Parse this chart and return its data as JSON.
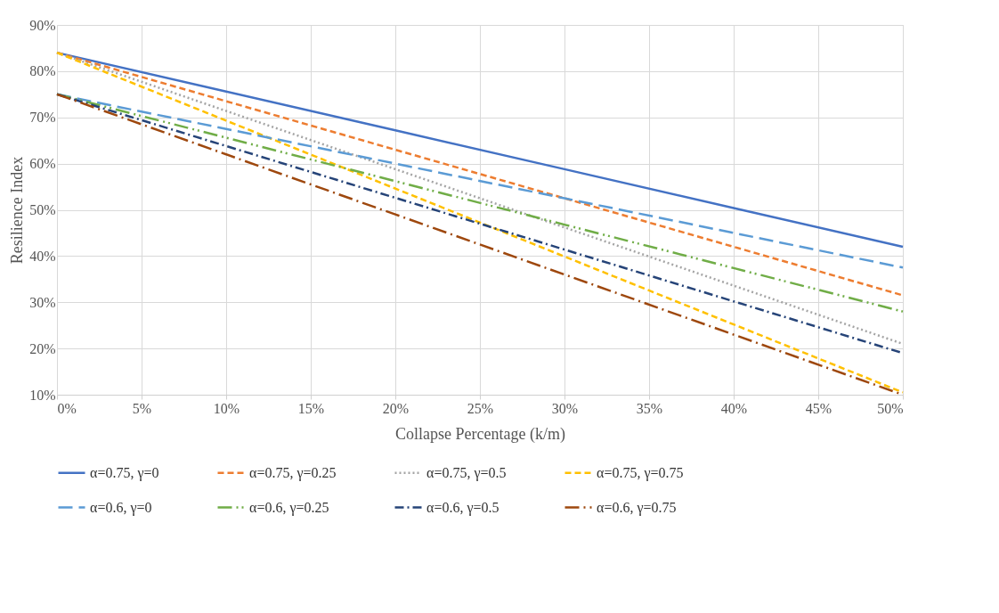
{
  "chart_data": {
    "type": "line",
    "xlabel": "Collapse Percentage (k/m)",
    "ylabel": "Resilience Index",
    "x": [
      0,
      10,
      20,
      30,
      40,
      50
    ],
    "xlim": [
      0,
      50
    ],
    "ylim": [
      10,
      90
    ],
    "xticks": [
      {
        "value": 0,
        "label": "0%"
      },
      {
        "value": 5,
        "label": "5%"
      },
      {
        "value": 10,
        "label": "10%"
      },
      {
        "value": 15,
        "label": "15%"
      },
      {
        "value": 20,
        "label": "20%"
      },
      {
        "value": 25,
        "label": "25%"
      },
      {
        "value": 30,
        "label": "30%"
      },
      {
        "value": 35,
        "label": "35%"
      },
      {
        "value": 40,
        "label": "40%"
      },
      {
        "value": 45,
        "label": "45%"
      },
      {
        "value": 50,
        "label": "50%"
      }
    ],
    "yticks": [
      {
        "value": 10,
        "label": "10%"
      },
      {
        "value": 20,
        "label": "20%"
      },
      {
        "value": 30,
        "label": "30%"
      },
      {
        "value": 40,
        "label": "40%"
      },
      {
        "value": 50,
        "label": "50%"
      },
      {
        "value": 60,
        "label": "60%"
      },
      {
        "value": 70,
        "label": "70%"
      },
      {
        "value": 80,
        "label": "80%"
      },
      {
        "value": 90,
        "label": "90%"
      }
    ],
    "grid": true,
    "legend": "bottom",
    "marker": "none",
    "series": [
      {
        "name": "α=0.75, γ=0",
        "color": "#4472c4",
        "line_style": "solid",
        "values": [
          84,
          75.6,
          67.2,
          58.8,
          50.4,
          42
        ]
      },
      {
        "name": "α=0.75, γ=0.25",
        "color": "#ed7d31",
        "line_style": "dashed",
        "values": [
          84,
          73.5,
          63,
          52.5,
          42,
          31.5
        ]
      },
      {
        "name": "α=0.75, γ=0.5",
        "color": "#a5a5a5",
        "line_style": "dotted",
        "values": [
          84,
          71.4,
          58.8,
          46.2,
          33.6,
          21
        ]
      },
      {
        "name": "α=0.75, γ=0.75",
        "color": "#ffc000",
        "line_style": "dashed",
        "values": [
          84,
          69.3,
          54.6,
          39.9,
          25.2,
          10.5
        ]
      },
      {
        "name": "α=0.6, γ=0",
        "color": "#5b9bd5",
        "line_style": "longdash",
        "values": [
          75,
          67.5,
          60,
          52.5,
          45,
          37.5
        ]
      },
      {
        "name": "α=0.6, γ=0.25",
        "color": "#70ad47",
        "line_style": "longdashdotdot",
        "values": [
          75,
          65.6,
          56.2,
          46.8,
          37.4,
          28
        ]
      },
      {
        "name": "α=0.6, γ=0.5",
        "color": "#264478",
        "line_style": "dashdot",
        "values": [
          75,
          63.8,
          52.6,
          41.4,
          30.2,
          19
        ]
      },
      {
        "name": "α=0.6, γ=0.75",
        "color": "#9e480e",
        "line_style": "longdashdot",
        "values": [
          75,
          62,
          49,
          36,
          23,
          10
        ]
      }
    ]
  }
}
